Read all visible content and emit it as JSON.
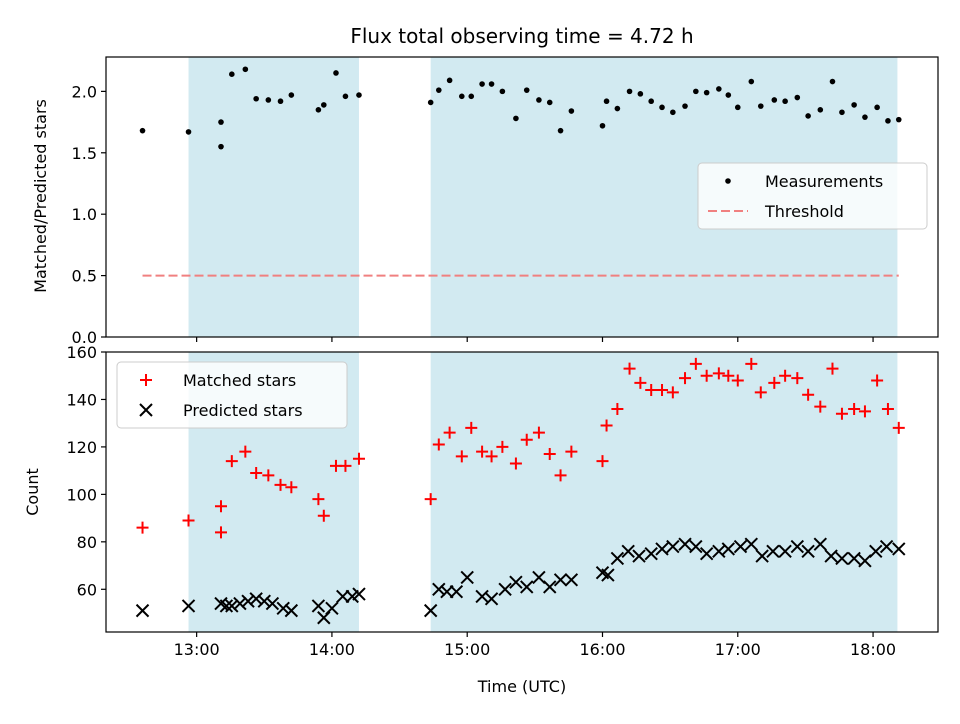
{
  "colors": {
    "shade": "#add8e6",
    "measurement": "#000000",
    "threshold": "#f08080",
    "matched": "#ff0000",
    "predicted": "#000000",
    "frame": "#000000"
  },
  "chart_data": [
    {
      "type": "scatter",
      "title": "Flux total observing time = 4.72 h",
      "ylabel": "Matched/Predicted stars",
      "xlabel": "",
      "xlim": [
        12.33,
        18.48
      ],
      "ylim": [
        0,
        2.28
      ],
      "yticks": [
        0.0,
        0.5,
        1.0,
        1.5,
        2.0
      ],
      "ytick_labels": [
        "0.0",
        "0.5",
        "1.0",
        "1.5",
        "2.0"
      ],
      "shaded_spans": [
        [
          12.94,
          14.2
        ],
        [
          14.73,
          18.18
        ]
      ],
      "legend": [
        "Measurements",
        "Threshold"
      ],
      "legend_position": "center-right",
      "series": [
        {
          "name": "Measurements",
          "marker": "dot",
          "x": [
            12.6,
            12.94,
            13.18,
            13.18,
            13.26,
            13.36,
            13.44,
            13.53,
            13.62,
            13.7,
            13.9,
            13.94,
            14.03,
            14.1,
            14.2,
            14.73,
            14.79,
            14.87,
            14.96,
            15.03,
            15.11,
            15.18,
            15.26,
            15.36,
            15.44,
            15.53,
            15.61,
            15.69,
            15.77,
            16.0,
            16.03,
            16.11,
            16.2,
            16.28,
            16.36,
            16.44,
            16.52,
            16.61,
            16.69,
            16.77,
            16.86,
            16.93,
            17.0,
            17.1,
            17.17,
            17.27,
            17.35,
            17.44,
            17.52,
            17.61,
            17.7,
            17.77,
            17.86,
            17.94,
            18.03,
            18.11,
            18.19
          ],
          "y": [
            1.68,
            1.67,
            1.55,
            1.75,
            2.14,
            2.18,
            1.94,
            1.93,
            1.92,
            1.97,
            1.85,
            1.89,
            2.15,
            1.96,
            1.97,
            1.91,
            2.01,
            2.09,
            1.96,
            1.96,
            2.06,
            2.06,
            2.0,
            1.78,
            2.01,
            1.93,
            1.91,
            1.68,
            1.84,
            1.72,
            1.92,
            1.86,
            2.0,
            1.98,
            1.92,
            1.87,
            1.83,
            1.88,
            2.0,
            1.99,
            2.02,
            1.97,
            1.87,
            2.08,
            1.88,
            1.93,
            1.92,
            1.95,
            1.8,
            1.85,
            2.08,
            1.83,
            1.89,
            1.79,
            1.87,
            1.76,
            1.77
          ]
        },
        {
          "name": "Threshold",
          "style": "dashed",
          "x": [
            12.6,
            18.19
          ],
          "y": [
            0.5,
            0.5
          ]
        }
      ]
    },
    {
      "type": "scatter",
      "title": "",
      "ylabel": "Count",
      "xlabel": "Time (UTC)",
      "xlim": [
        12.33,
        18.48
      ],
      "ylim": [
        42,
        160
      ],
      "yticks": [
        60,
        80,
        100,
        120,
        140,
        160
      ],
      "ytick_labels": [
        "60",
        "80",
        "100",
        "120",
        "140",
        "160"
      ],
      "xticks": [
        13,
        14,
        15,
        16,
        17,
        18
      ],
      "xtick_labels": [
        "13:00",
        "14:00",
        "15:00",
        "16:00",
        "17:00",
        "18:00"
      ],
      "shaded_spans": [
        [
          12.94,
          14.2
        ],
        [
          14.73,
          18.18
        ]
      ],
      "legend": [
        "Matched stars",
        "Predicted stars"
      ],
      "legend_position": "top-left",
      "series": [
        {
          "name": "Matched stars",
          "marker": "plus",
          "x": [
            12.6,
            12.94,
            13.18,
            13.18,
            13.26,
            13.36,
            13.44,
            13.53,
            13.62,
            13.7,
            13.9,
            13.94,
            14.03,
            14.1,
            14.2,
            14.73,
            14.79,
            14.87,
            14.96,
            15.03,
            15.11,
            15.18,
            15.26,
            15.36,
            15.44,
            15.53,
            15.61,
            15.69,
            15.77,
            16.0,
            16.03,
            16.11,
            16.2,
            16.28,
            16.36,
            16.44,
            16.52,
            16.61,
            16.69,
            16.77,
            16.86,
            16.93,
            17.0,
            17.1,
            17.17,
            17.27,
            17.35,
            17.44,
            17.52,
            17.61,
            17.7,
            17.77,
            17.86,
            17.94,
            18.03,
            18.11,
            18.19
          ],
          "y": [
            86,
            89,
            84,
            95,
            114,
            118,
            109,
            108,
            104,
            103,
            98,
            91,
            112,
            112,
            115,
            98,
            121,
            126,
            116,
            128,
            118,
            116,
            120,
            113,
            123,
            126,
            117,
            108,
            118,
            114,
            129,
            136,
            153,
            147,
            144,
            144,
            143,
            149,
            155,
            150,
            151,
            150,
            148,
            155,
            143,
            147,
            150,
            149,
            142,
            137,
            153,
            134,
            136,
            135,
            148,
            136,
            128
          ]
        },
        {
          "name": "Predicted stars",
          "marker": "x",
          "x": [
            12.6,
            12.94,
            13.18,
            13.22,
            13.26,
            13.32,
            13.38,
            13.44,
            13.5,
            13.56,
            13.64,
            13.7,
            13.9,
            13.94,
            14.0,
            14.08,
            14.15,
            14.2,
            14.73,
            14.79,
            14.85,
            14.92,
            15.0,
            15.11,
            15.18,
            15.28,
            15.36,
            15.44,
            15.53,
            15.61,
            15.69,
            15.77,
            16.0,
            16.04,
            16.11,
            16.19,
            16.27,
            16.36,
            16.44,
            16.52,
            16.61,
            16.69,
            16.77,
            16.86,
            16.93,
            17.02,
            17.1,
            17.18,
            17.26,
            17.35,
            17.44,
            17.52,
            17.61,
            17.69,
            17.77,
            17.86,
            17.94,
            18.02,
            18.1,
            18.19
          ],
          "y": [
            51,
            53,
            54,
            53,
            53,
            54,
            55,
            56,
            55,
            54,
            52,
            51,
            53,
            48,
            52,
            57,
            57,
            58,
            51,
            60,
            59,
            59,
            65,
            57,
            56,
            60,
            63,
            61,
            65,
            61,
            64,
            64,
            67,
            66,
            73,
            76,
            74,
            75,
            77,
            78,
            79,
            78,
            75,
            76,
            77,
            78,
            79,
            74,
            76,
            76,
            78,
            76,
            79,
            74,
            73,
            73,
            72,
            76,
            78,
            77
          ]
        }
      ]
    }
  ]
}
